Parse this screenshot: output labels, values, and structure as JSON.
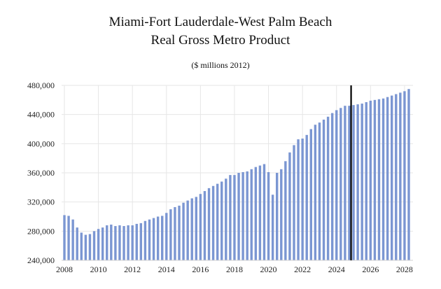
{
  "chart_data": {
    "type": "bar",
    "title": "Miami-Fort Lauderdale-West Palm Beach",
    "title_line2": "Real Gross Metro Product",
    "subtitle": "($ millions 2012)",
    "xlabel": "",
    "ylabel": "",
    "ylim": [
      240000,
      480000
    ],
    "yticks": [
      "240,000",
      "280,000",
      "320,000",
      "360,000",
      "400,000",
      "440,000",
      "480,000"
    ],
    "ytick_values": [
      240000,
      280000,
      320000,
      360000,
      400000,
      440000,
      480000
    ],
    "xticks": [
      "2008",
      "2010",
      "2012",
      "2014",
      "2016",
      "2018",
      "2020",
      "2022",
      "2024",
      "2026",
      "2028"
    ],
    "xtick_values": [
      2008,
      2010,
      2012,
      2014,
      2016,
      2018,
      2020,
      2022,
      2024,
      2026,
      2028
    ],
    "x_start": 2008,
    "x_end": 2028.25,
    "forecast_marker": 2024.75,
    "bar_color": "#7b96d2",
    "marker_color": "#000000",
    "grid_color": "#e6e6e6",
    "series": [
      {
        "name": "Real Gross Metro Product",
        "x": [
          2008,
          2008.25,
          2008.5,
          2008.75,
          2009,
          2009.25,
          2009.5,
          2009.75,
          2010,
          2010.25,
          2010.5,
          2010.75,
          2011,
          2011.25,
          2011.5,
          2011.75,
          2012,
          2012.25,
          2012.5,
          2012.75,
          2013,
          2013.25,
          2013.5,
          2013.75,
          2014,
          2014.25,
          2014.5,
          2014.75,
          2015,
          2015.25,
          2015.5,
          2015.75,
          2016,
          2016.25,
          2016.5,
          2016.75,
          2017,
          2017.25,
          2017.5,
          2017.75,
          2018,
          2018.25,
          2018.5,
          2018.75,
          2019,
          2019.25,
          2019.5,
          2019.75,
          2020,
          2020.25,
          2020.5,
          2020.75,
          2021,
          2021.25,
          2021.5,
          2021.75,
          2022,
          2022.25,
          2022.5,
          2022.75,
          2023,
          2023.25,
          2023.5,
          2023.75,
          2024,
          2024.25,
          2024.5,
          2024.75,
          2025,
          2025.25,
          2025.5,
          2025.75,
          2026,
          2026.25,
          2026.5,
          2026.75,
          2027,
          2027.25,
          2027.5,
          2027.75,
          2028,
          2028.25
        ],
        "values": [
          302000,
          301000,
          296000,
          285000,
          278000,
          275000,
          276000,
          280000,
          283000,
          285000,
          288000,
          289000,
          287000,
          288000,
          287000,
          288000,
          288000,
          290000,
          291000,
          294000,
          296000,
          298000,
          300000,
          301000,
          305000,
          310000,
          313000,
          315000,
          319000,
          322000,
          325000,
          327000,
          331000,
          335000,
          339000,
          342000,
          345000,
          348000,
          352000,
          357000,
          357000,
          360000,
          361000,
          362000,
          365000,
          368000,
          370000,
          372000,
          361000,
          330000,
          360000,
          365000,
          376000,
          388000,
          398000,
          406000,
          407000,
          412000,
          420000,
          426000,
          429000,
          433000,
          437000,
          442000,
          446000,
          449000,
          452000,
          452000,
          453000,
          454000,
          455000,
          457000,
          459000,
          460000,
          461000,
          462000,
          464000,
          466000,
          468000,
          470000,
          472000,
          475000
        ]
      }
    ]
  }
}
